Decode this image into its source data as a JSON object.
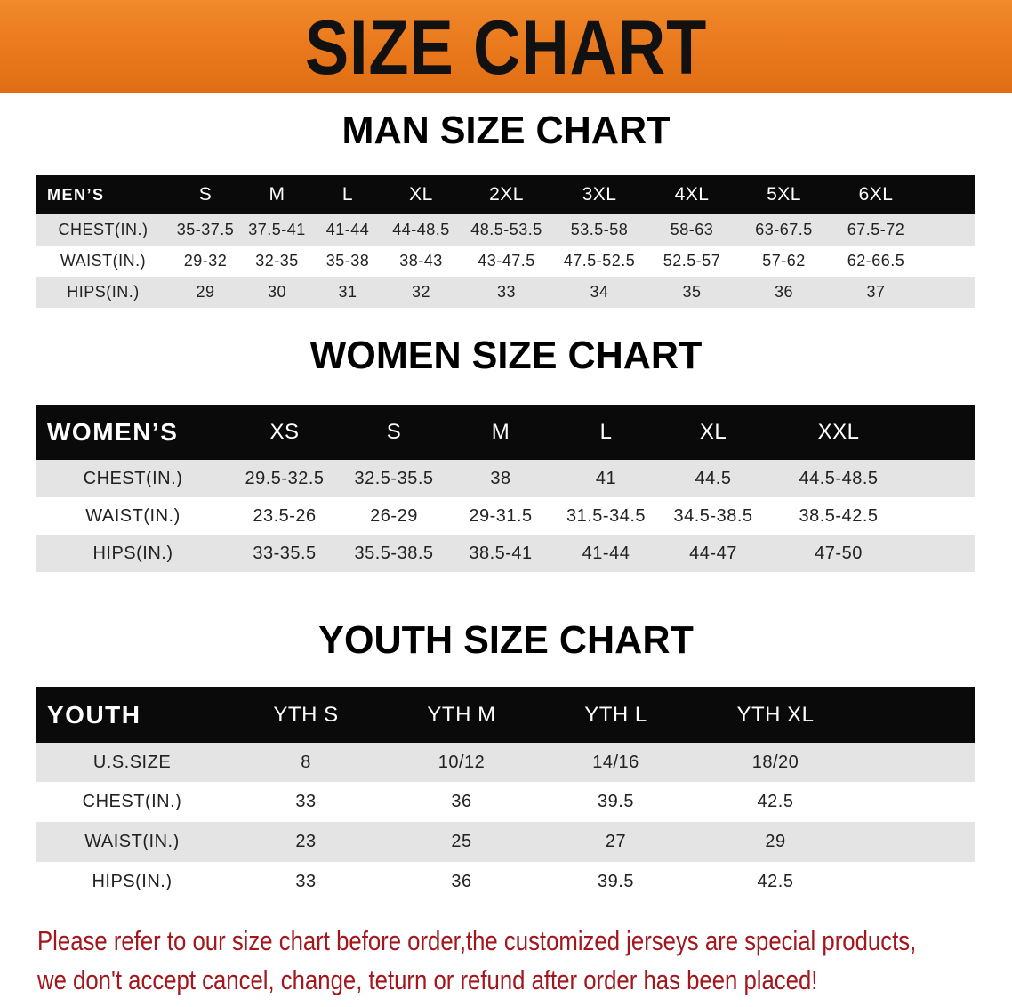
{
  "banner": {
    "title": "SIZE CHART",
    "color": "#e8781a"
  },
  "note_color": "#a3161c",
  "men": {
    "title": "MAN SIZE CHART",
    "header": [
      "MEN’S",
      "S",
      "M",
      "L",
      "XL",
      "2XL",
      "3XL",
      "4XL",
      "5XL",
      "6XL"
    ],
    "rows": [
      [
        "CHEST(IN.)",
        "35-37.5",
        "37.5-41",
        "41-44",
        "44-48.5",
        "48.5-53.5",
        "53.5-58",
        "58-63",
        "63-67.5",
        "67.5-72"
      ],
      [
        "WAIST(IN.)",
        "29-32",
        "32-35",
        "35-38",
        "38-43",
        "43-47.5",
        "47.5-52.5",
        "52.5-57",
        "57-62",
        "62-66.5"
      ],
      [
        "HIPS(IN.)",
        "29",
        "30",
        "31",
        "32",
        "33",
        "34",
        "35",
        "36",
        "37"
      ]
    ]
  },
  "women": {
    "title": "WOMEN SIZE CHART",
    "header": [
      "WOMEN’S",
      "XS",
      "S",
      "M",
      "L",
      "XL",
      "XXL"
    ],
    "rows": [
      [
        "CHEST(IN.)",
        "29.5-32.5",
        "32.5-35.5",
        "38",
        "41",
        "44.5",
        "44.5-48.5"
      ],
      [
        "WAIST(IN.)",
        "23.5-26",
        "26-29",
        "29-31.5",
        "31.5-34.5",
        "34.5-38.5",
        "38.5-42.5"
      ],
      [
        "HIPS(IN.)",
        "33-35.5",
        "35.5-38.5",
        "38.5-41",
        "41-44",
        "44-47",
        "47-50"
      ]
    ]
  },
  "youth": {
    "title": "YOUTH SIZE CHART",
    "header": [
      "YOUTH",
      "YTH S",
      "YTH M",
      "YTH L",
      "YTH XL"
    ],
    "rows": [
      [
        "U.S.SIZE",
        "8",
        "10/12",
        "14/16",
        "18/20"
      ],
      [
        "CHEST(IN.)",
        "33",
        "36",
        "39.5",
        "42.5"
      ],
      [
        "WAIST(IN.)",
        "23",
        "25",
        "27",
        "29"
      ],
      [
        "HIPS(IN.)",
        "33",
        "36",
        "39.5",
        "42.5"
      ]
    ]
  },
  "note": {
    "line1": "Please refer to our size chart before order,the customized jerseys are special products,",
    "line2": "we don't accept cancel, change, teturn or refund after order has been placed!"
  }
}
